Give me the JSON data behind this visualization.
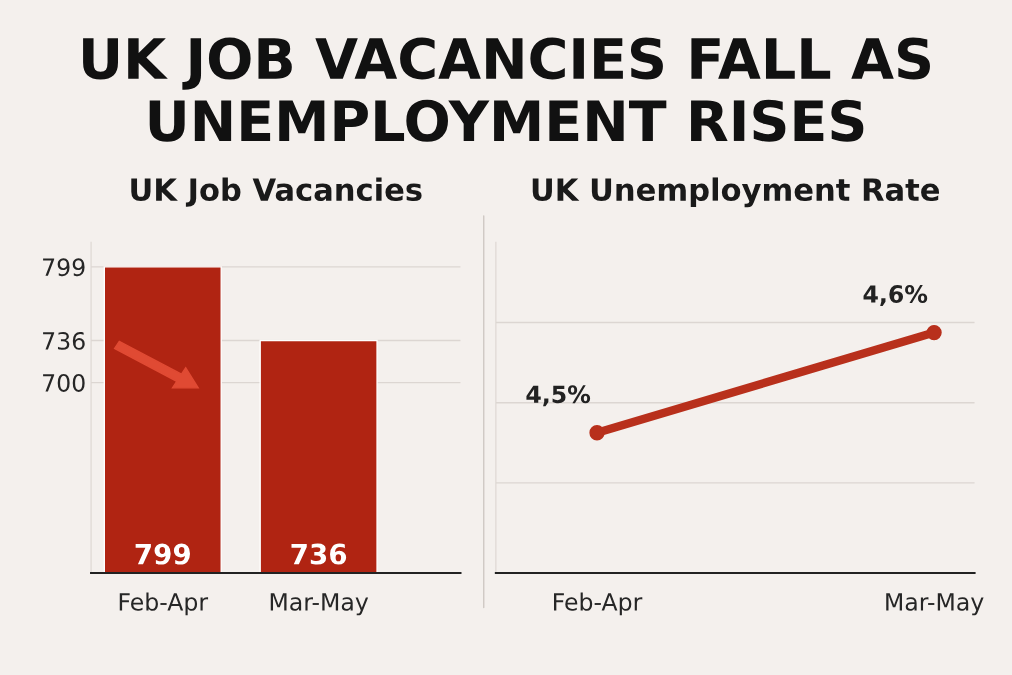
{
  "chart_data": [
    {
      "type": "bar",
      "title": "UK Job Vacancies",
      "annotations": [
        "UK JOB VACANCIES FALL AS UNEMPLOYMENT RISES"
      ],
      "categories": [
        "Feb-Apr",
        "Mar-May"
      ],
      "values": [
        799,
        736
      ],
      "color": "#b02412",
      "data_labels": true,
      "ylim": [
        537,
        820
      ],
      "yticks": [
        799,
        736,
        700
      ],
      "grid": "y"
    },
    {
      "type": "line",
      "title": "UK Unemployment Rate",
      "categories": [
        "Feb-Apr",
        "Mar-May"
      ],
      "values": [
        4.5,
        4.6
      ],
      "value_labels": [
        "4,5%",
        "4,6%"
      ],
      "color": "#b8301c",
      "marker": "circle",
      "line_style": "solid",
      "ylim": [
        4.36,
        4.69
      ],
      "yticks": [
        {
          "value": 4.45,
          "label": null
        },
        {
          "value": 4.53,
          "label": null
        },
        {
          "value": 4.61,
          "label": null
        }
      ],
      "grid": "y",
      "tick_labels": "x"
    }
  ]
}
